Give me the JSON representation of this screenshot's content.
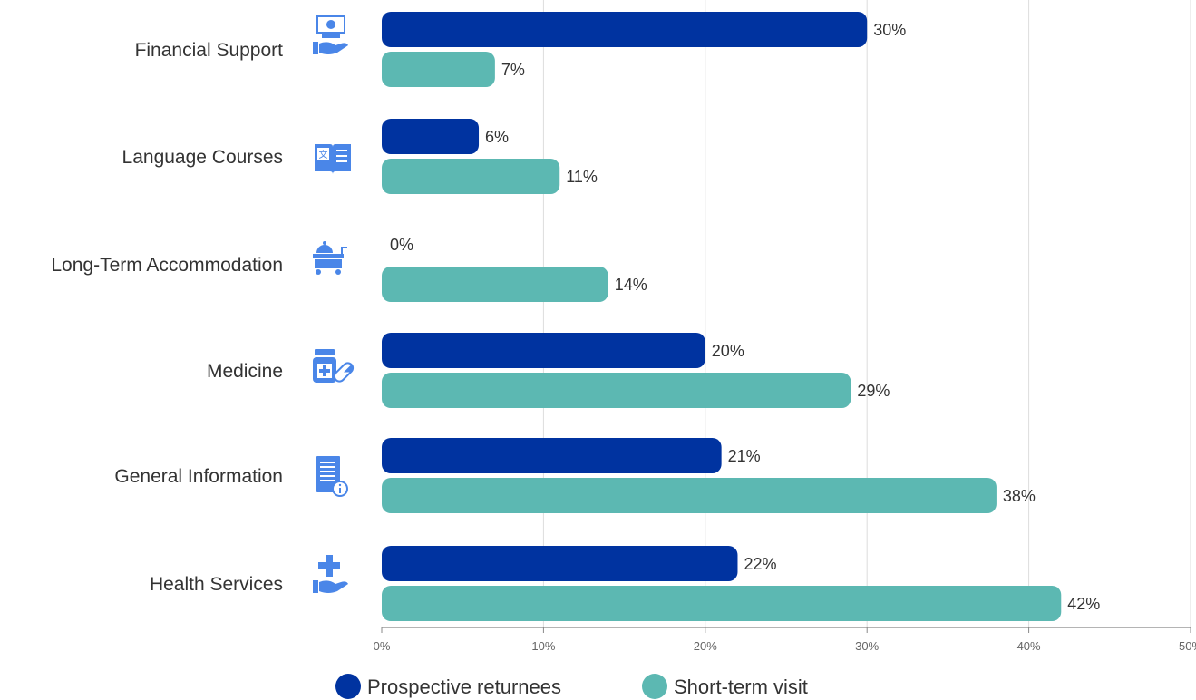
{
  "chart_data": {
    "type": "bar",
    "orientation": "horizontal",
    "categories": [
      "Financial Support",
      "Language Courses",
      "Long-Term Accommodation",
      "Medicine",
      "General Information",
      "Health Services"
    ],
    "category_icons": [
      "hand-money-icon",
      "book-translate-icon",
      "hotel-cart-icon",
      "medicine-pill-icon",
      "document-info-icon",
      "hand-cross-icon"
    ],
    "series": [
      {
        "name": "Prospective returnees",
        "color": "#0033a0",
        "values": [
          30,
          6,
          0,
          20,
          21,
          22
        ],
        "value_labels": [
          "30%",
          "6%",
          "0%",
          "20%",
          "21%",
          "22%"
        ]
      },
      {
        "name": "Short-term visit",
        "color": "#5cb8b2",
        "values": [
          7,
          11,
          14,
          29,
          38,
          42
        ],
        "value_labels": [
          "7%",
          "11%",
          "14%",
          "29%",
          "38%",
          "42%"
        ]
      }
    ],
    "xlim": [
      0,
      50
    ],
    "xticks": [
      "0%",
      "10%",
      "20%",
      "30%",
      "40%",
      "50%"
    ],
    "grid": true,
    "legend_position": "bottom",
    "icon_color": "#4a86e8"
  }
}
